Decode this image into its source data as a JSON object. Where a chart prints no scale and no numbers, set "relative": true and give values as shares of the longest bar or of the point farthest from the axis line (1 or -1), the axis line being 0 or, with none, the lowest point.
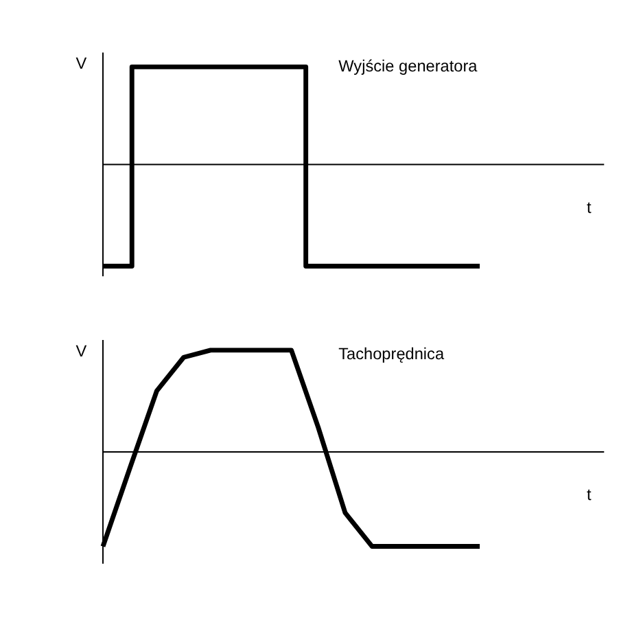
{
  "chart_data": [
    {
      "type": "step",
      "relative": true,
      "title": "Wyjście generatora",
      "xlabel": "t",
      "ylabel": "V",
      "categories": [
        null,
        null,
        null,
        null,
        null,
        null,
        null,
        null,
        null,
        null,
        null,
        null,
        null,
        null
      ],
      "series": [
        {
          "color": "#000000",
          "values": [
            -1,
            0.96,
            0.96,
            0.96,
            0.96,
            0.96,
            0.96,
            -1,
            -1,
            -1,
            -1,
            -1,
            -1,
            -1
          ]
        }
      ]
    },
    {
      "type": "line",
      "relative": true,
      "title": "Tachoprędnica",
      "xlabel": "t",
      "ylabel": "V",
      "categories": [
        null,
        null,
        null,
        null,
        null,
        null,
        null,
        null,
        null,
        null,
        null,
        null,
        null,
        null,
        null
      ],
      "series": [
        {
          "color": "#000000",
          "values": [
            -0.93,
            -0.16,
            0.6,
            0.93,
            1,
            1,
            1,
            1,
            0.24,
            -0.6,
            -0.93,
            -0.93,
            -0.93,
            -0.93,
            -0.93
          ]
        }
      ]
    }
  ]
}
